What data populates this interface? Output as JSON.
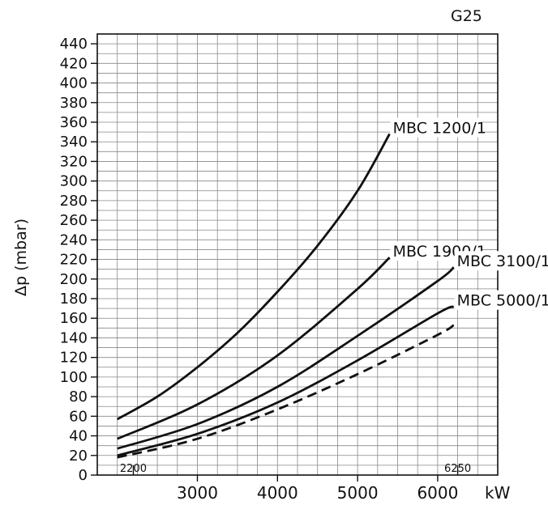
{
  "chart_data": {
    "type": "line",
    "corner_label": "G25",
    "ylabel": "Δp (mbar)",
    "xlabel": "kW",
    "xlim": [
      1750,
      6750
    ],
    "ylim": [
      0,
      450
    ],
    "y_ticks": [
      0,
      20,
      40,
      60,
      80,
      100,
      120,
      140,
      160,
      180,
      200,
      220,
      240,
      260,
      280,
      300,
      320,
      340,
      360,
      380,
      400,
      420,
      440
    ],
    "x_ticks": [
      3000,
      4000,
      5000,
      6000
    ],
    "grid": true,
    "range_markers": [
      {
        "label": "2200",
        "x": 2200
      },
      {
        "label": "6250",
        "x": 6250
      }
    ],
    "series": [
      {
        "name": "MBC 1200/1",
        "style": "solid",
        "x": [
          2000,
          2500,
          3000,
          3500,
          4000,
          4500,
          5000,
          5400
        ],
        "y": [
          57,
          80,
          110,
          145,
          187,
          234,
          290,
          348
        ]
      },
      {
        "name": "MBC 1900/1",
        "style": "solid",
        "x": [
          2000,
          3000,
          4000,
          5000,
          5400
        ],
        "y": [
          37,
          72,
          122,
          190,
          222
        ]
      },
      {
        "name": "MBC 3100/1",
        "style": "solid",
        "x": [
          2000,
          3000,
          4000,
          5000,
          6000,
          6200
        ],
        "y": [
          27,
          52,
          90,
          142,
          198,
          212
        ]
      },
      {
        "name": "MBC 5000/1",
        "style": "solid",
        "x": [
          2000,
          3000,
          4000,
          5000,
          6000,
          6200
        ],
        "y": [
          20,
          42,
          74,
          117,
          165,
          172
        ]
      },
      {
        "name": "",
        "style": "dashed",
        "x": [
          2000,
          3000,
          4000,
          5000,
          6000,
          6200
        ],
        "y": [
          18,
          37,
          67,
          103,
          143,
          153
        ]
      }
    ]
  }
}
